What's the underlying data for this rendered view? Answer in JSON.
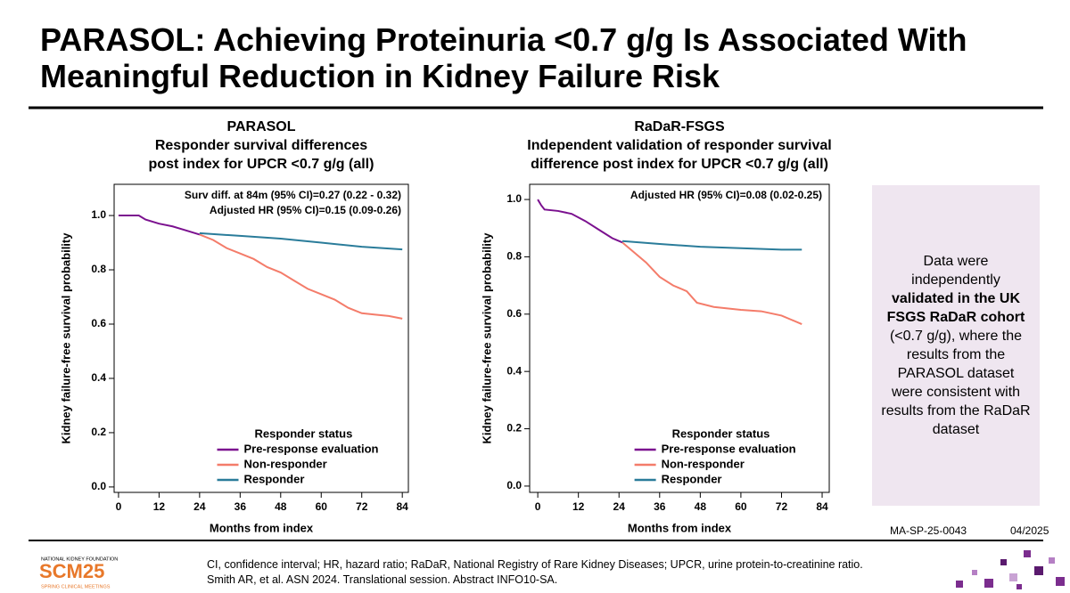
{
  "slide": {
    "title": [
      "PARASOL: Achieving Proteinuria <0.7 g/g Is Associated With",
      "Meaningful Reduction in Kidney Failure Risk"
    ],
    "box": [
      {
        "text": "Data were independently "
      },
      {
        "text": "validated in the UK FSGS RaDaR cohort",
        "bold": true
      },
      {
        "text": " (<0.7 g/g), where the results from the PARASOL dataset were consistent with results from the RaDaR dataset"
      }
    ],
    "code": "MA-SP-25-0043",
    "date": "04/2025",
    "footnotes": [
      "CI, confidence interval; HR, hazard ratio; RaDaR, National Registry of Rare Kidney Diseases; UPCR, urine protein-to-creatinine ratio.",
      "Smith AR, et al. ASN 2024. Translational session. Abstract INFO10-SA."
    ],
    "logo": [
      "NATIONAL KIDNEY FOUNDATION",
      "SCM25",
      "SPRING CLINICAL MEETINGS"
    ]
  },
  "chart_data": [
    {
      "type": "line",
      "title": [
        "PARASOL",
        "Responder survival differences",
        "post index for UPCR <0.7 g/g (all)"
      ],
      "annotations": [
        "Surv diff. at 84m (95% CI)=0.27 (0.22 - 0.32)",
        "Adjusted HR (95% CI)=0.15 (0.09-0.26)"
      ],
      "x_label": "Months from index",
      "y_label": "Kidney failure-free survival probability",
      "xlim": [
        -1.3,
        85.8
      ],
      "xticks": [
        0,
        12,
        24,
        36,
        48,
        60,
        72,
        84
      ],
      "ylim": [
        -0.02,
        1.115
      ],
      "yticks": [
        {
          "value": 0,
          "label": "0.0"
        },
        {
          "value": 0.2,
          "label": "0.2"
        },
        {
          "value": 0.4,
          "label": "0.4"
        },
        {
          "value": 0.6,
          "label": "0.6"
        },
        {
          "value": 0.8,
          "label": "0.8"
        },
        {
          "value": 1,
          "label": "1.0"
        }
      ],
      "legend_title": "Responder status",
      "legend": "lower right",
      "series": [
        {
          "name": "Pre-response evaluation",
          "color": "#7b118f",
          "x": [
            0,
            6,
            8,
            12,
            16,
            20,
            24
          ],
          "values": [
            1.0,
            1.0,
            0.985,
            0.97,
            0.96,
            0.945,
            0.93
          ]
        },
        {
          "name": "Non-responder",
          "color": "#f47c6a",
          "x": [
            24,
            28,
            32,
            36,
            40,
            44,
            48,
            52,
            56,
            60,
            64,
            68,
            72,
            76,
            80,
            84
          ],
          "values": [
            0.93,
            0.91,
            0.88,
            0.86,
            0.84,
            0.81,
            0.79,
            0.76,
            0.73,
            0.71,
            0.69,
            0.66,
            0.64,
            0.635,
            0.63,
            0.62
          ]
        },
        {
          "name": "Responder",
          "color": "#2a7c9a",
          "x": [
            24,
            36,
            48,
            60,
            72,
            84
          ],
          "values": [
            0.935,
            0.925,
            0.915,
            0.9,
            0.885,
            0.875
          ]
        }
      ]
    },
    {
      "type": "line",
      "title": [
        "RaDaR-FSGS",
        "Independent validation of responder survival",
        "difference post index for UPCR <0.7 g/g (all)"
      ],
      "annotations": [
        "Adjusted HR (95% CI)=0.08 (0.02-0.25)"
      ],
      "x_label": "Months from index",
      "y_label": "Kidney failure-free survival probability",
      "xlim": [
        -2.4,
        86.1
      ],
      "xticks": [
        0,
        12,
        24,
        36,
        48,
        60,
        72,
        84
      ],
      "ylim": [
        -0.022,
        1.053
      ],
      "yticks": [
        {
          "value": 0,
          "label": "0.0"
        },
        {
          "value": 0.2,
          "label": "0.2"
        },
        {
          "value": 0.4,
          "label": "0.4"
        },
        {
          "value": 0.6,
          "label": "0.6"
        },
        {
          "value": 0.8,
          "label": "0.8"
        },
        {
          "value": 1,
          "label": "1.0"
        }
      ],
      "legend_title": "Responder status",
      "legend": "lower right",
      "series": [
        {
          "name": "Pre-response evaluation",
          "color": "#7b118f",
          "x": [
            0,
            1,
            2,
            6,
            10,
            14,
            18,
            22,
            25
          ],
          "values": [
            1.0,
            0.98,
            0.965,
            0.96,
            0.95,
            0.925,
            0.895,
            0.865,
            0.85
          ]
        },
        {
          "name": "Non-responder",
          "color": "#f47c6a",
          "x": [
            25,
            28,
            32,
            36,
            40,
            44,
            47,
            52,
            60,
            66,
            72,
            75,
            78
          ],
          "values": [
            0.85,
            0.82,
            0.78,
            0.73,
            0.7,
            0.68,
            0.64,
            0.625,
            0.615,
            0.61,
            0.595,
            0.58,
            0.565
          ]
        },
        {
          "name": "Responder",
          "color": "#2a7c9a",
          "x": [
            25,
            36,
            48,
            60,
            72,
            78
          ],
          "values": [
            0.855,
            0.845,
            0.835,
            0.83,
            0.825,
            0.825
          ]
        }
      ]
    }
  ]
}
